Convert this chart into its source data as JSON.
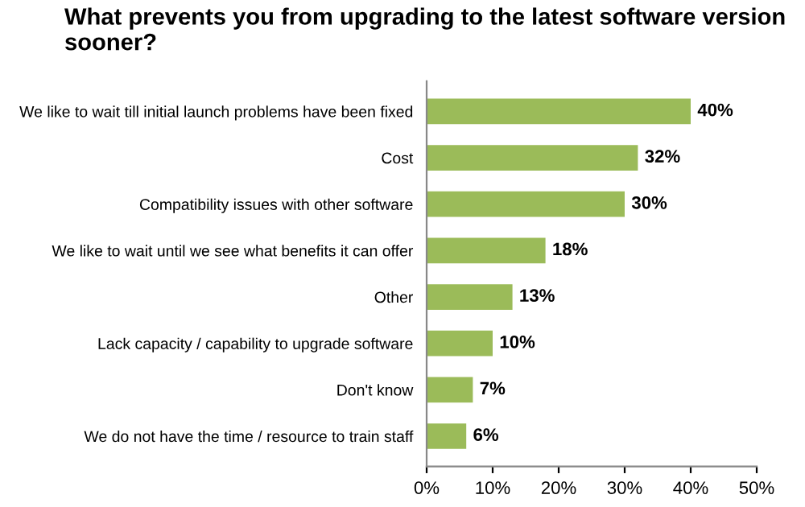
{
  "chart_data": {
    "type": "bar",
    "orientation": "horizontal",
    "title": "What prevents you from upgrading to the latest software version sooner?",
    "categories": [
      "We like to wait till initial launch problems have been fixed",
      "Cost",
      "Compatibility issues with other software",
      "We like to wait until we see what benefits it can offer",
      "Other",
      "Lack capacity / capability to upgrade software",
      "Don't know",
      "We do not have the time / resource to train staff"
    ],
    "values": [
      40,
      32,
      30,
      18,
      13,
      10,
      7,
      6
    ],
    "value_labels": [
      "40%",
      "32%",
      "30%",
      "18%",
      "13%",
      "10%",
      "7%",
      "6%"
    ],
    "color": "#9bbb59",
    "xlim": [
      0,
      50
    ],
    "xticks": [
      {
        "value": 0,
        "label": "0%"
      },
      {
        "value": 10,
        "label": "10%"
      },
      {
        "value": 20,
        "label": "20%"
      },
      {
        "value": 30,
        "label": "30%"
      },
      {
        "value": 40,
        "label": "40%"
      },
      {
        "value": 50,
        "label": "50%"
      }
    ],
    "grid": false,
    "legend": false
  }
}
